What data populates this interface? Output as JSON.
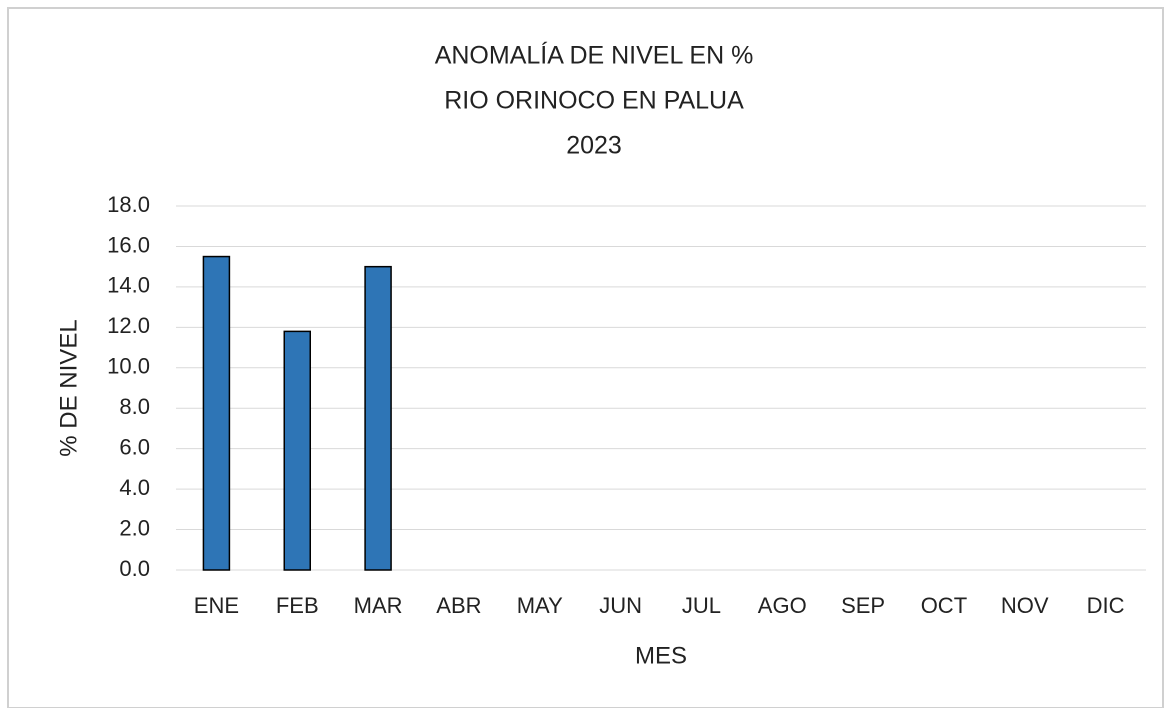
{
  "chart_data": {
    "type": "bar",
    "title": [
      "ANOMALÍA DE NIVEL EN %",
      "RIO ORINOCO EN PALUA",
      "2023"
    ],
    "x_label": "MES",
    "y_label": "% DE NIVEL",
    "categories": [
      "ENE",
      "FEB",
      "MAR",
      "ABR",
      "MAY",
      "JUN",
      "JUL",
      "AGO",
      "SEP",
      "OCT",
      "NOV",
      "DIC"
    ],
    "values": [
      15.5,
      11.8,
      15.0,
      null,
      null,
      null,
      null,
      null,
      null,
      null,
      null,
      null
    ],
    "color": "#2e75b6",
    "ylim": [
      0,
      18
    ],
    "yticks": [
      {
        "value": 0,
        "label": "0.0"
      },
      {
        "value": 2,
        "label": "2.0"
      },
      {
        "value": 4,
        "label": "4.0"
      },
      {
        "value": 6,
        "label": "6.0"
      },
      {
        "value": 8,
        "label": "8.0"
      },
      {
        "value": 10,
        "label": "10.0"
      },
      {
        "value": 12,
        "label": "12.0"
      },
      {
        "value": 14,
        "label": "14.0"
      },
      {
        "value": 16,
        "label": "16.0"
      },
      {
        "value": 18,
        "label": "18.0"
      }
    ],
    "grid": true
  }
}
